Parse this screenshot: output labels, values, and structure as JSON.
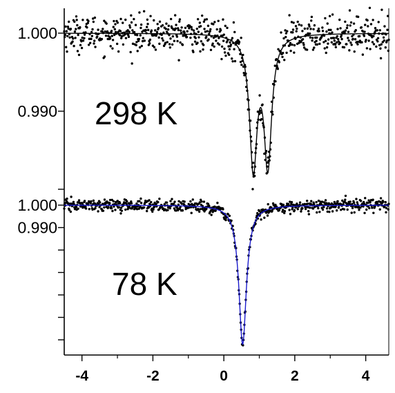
{
  "chart_data": [
    {
      "type": "scatter",
      "temperature_label": "298 K",
      "xlim": [
        -4.5,
        4.65
      ],
      "yticks": [
        {
          "value": 1.0,
          "label": "1.000"
        },
        {
          "value": 0.99,
          "label": "0.990"
        }
      ],
      "baseline": 1.0,
      "fit_color": "#000000",
      "point_color": "#000000",
      "lines": [
        {
          "position": 0.83,
          "depth": 0.0168,
          "hwhm": 0.13
        },
        {
          "position": 1.24,
          "depth": 0.0164,
          "hwhm": 0.13
        }
      ],
      "noise": 0.0011,
      "n_points": 700
    },
    {
      "type": "scatter",
      "temperature_label": "78 K",
      "xlim": [
        -4.5,
        4.65
      ],
      "yticks": [
        {
          "value": 1.0,
          "label": "1.000"
        },
        {
          "value": 0.99,
          "label": "0.990"
        }
      ],
      "baseline": 1.0,
      "fit_color": "#1a1acc",
      "point_color": "#000000",
      "lines": [
        {
          "position": 0.53,
          "depth": 0.062,
          "hwhm": 0.13
        }
      ],
      "noise": 0.0013,
      "n_points": 700
    }
  ],
  "x_axis": {
    "range": [
      -4.5,
      4.65
    ],
    "ticks": [
      {
        "value": -4,
        "label": "-4"
      },
      {
        "value": -2,
        "label": "-2"
      },
      {
        "value": 0,
        "label": "0"
      },
      {
        "value": 2,
        "label": "2"
      },
      {
        "value": 4,
        "label": "4"
      }
    ]
  }
}
